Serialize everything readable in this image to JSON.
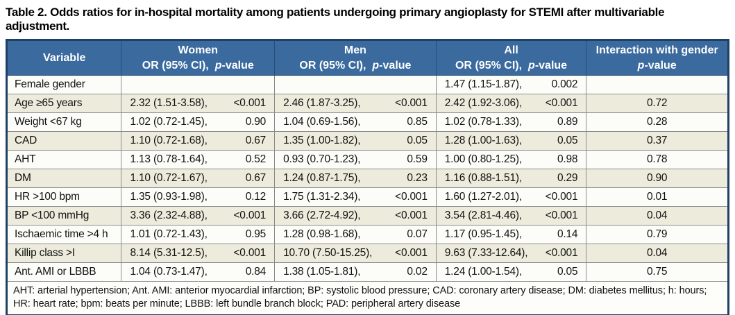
{
  "title": "Table 2. Odds ratios for in-hospital mortality among patients undergoing primary angioplasty for STEMI after multivariable adjustment.",
  "colors": {
    "header_bg": "#3a6a9e",
    "outer_border": "#1e3f66",
    "row_alt": "#edecdc",
    "row_plain": "#fcfcf8",
    "inner_border": "#8a8a8a"
  },
  "table": {
    "header": {
      "variable": "Variable",
      "women": "Women",
      "men": "Men",
      "all": "All",
      "interaction_line1": "Interaction with gender",
      "sub_or": "OR (95% CI),",
      "p_italic": "p",
      "p_rest": "-value"
    },
    "rows": [
      {
        "variable": "Female gender",
        "women": {
          "or": "",
          "p": ""
        },
        "men": {
          "or": "",
          "p": ""
        },
        "all": {
          "or": "1.47 (1.15-1.87),",
          "p": "0.002"
        },
        "interaction": ""
      },
      {
        "variable": "Age ≥65 years",
        "women": {
          "or": "2.32 (1.51-3.58),",
          "p": "<0.001"
        },
        "men": {
          "or": "2.46 (1.87-3.25),",
          "p": "<0.001"
        },
        "all": {
          "or": "2.42 (1.92-3.06),",
          "p": "<0.001"
        },
        "interaction": "0.72"
      },
      {
        "variable": "Weight <67 kg",
        "women": {
          "or": "1.02 (0.72-1.45),",
          "p": "0.90"
        },
        "men": {
          "or": "1.04 (0.69-1.56),",
          "p": "0.85"
        },
        "all": {
          "or": "1.02 (0.78-1.33),",
          "p": "0.89"
        },
        "interaction": "0.28"
      },
      {
        "variable": "CAD",
        "women": {
          "or": "1.10 (0.72-1.68),",
          "p": "0.67"
        },
        "men": {
          "or": "1.35 (1.00-1.82),",
          "p": "0.05"
        },
        "all": {
          "or": "1.28 (1.00-1.63),",
          "p": "0.05"
        },
        "interaction": "0.37"
      },
      {
        "variable": "AHT",
        "women": {
          "or": "1.13 (0.78-1.64),",
          "p": "0.52"
        },
        "men": {
          "or": "0.93 (0.70-1.23),",
          "p": "0.59"
        },
        "all": {
          "or": "1.00 (0.80-1.25),",
          "p": "0.98"
        },
        "interaction": "0.78"
      },
      {
        "variable": "DM",
        "women": {
          "or": "1.10 (0.72-1.67),",
          "p": "0.67"
        },
        "men": {
          "or": "1.24 (0.87-1.75),",
          "p": "0.23"
        },
        "all": {
          "or": "1.16 (0.88-1.51),",
          "p": "0.29"
        },
        "interaction": "0.90"
      },
      {
        "variable": "HR >100 bpm",
        "women": {
          "or": "1.35 (0.93-1.98),",
          "p": "0.12"
        },
        "men": {
          "or": "1.75 (1.31-2.34),",
          "p": "<0.001"
        },
        "all": {
          "or": "1.60 (1.27-2.01),",
          "p": "<0.001"
        },
        "interaction": "0.01"
      },
      {
        "variable": "BP <100 mmHg",
        "women": {
          "or": "3.36 (2.32-4.88),",
          "p": "<0.001"
        },
        "men": {
          "or": "3.66 (2.72-4.92),",
          "p": "<0.001"
        },
        "all": {
          "or": "3.54 (2.81-4.46),",
          "p": "<0.001"
        },
        "interaction": "0.04"
      },
      {
        "variable": "Ischaemic time >4 h",
        "women": {
          "or": "1.01 (0.72-1.43),",
          "p": "0.95"
        },
        "men": {
          "or": "1.28 (0.98-1.68),",
          "p": "0.07"
        },
        "all": {
          "or": "1.17 (0.95-1.45),",
          "p": "0.14"
        },
        "interaction": "0.79"
      },
      {
        "variable": "Killip class >I",
        "women": {
          "or": "8.14 (5.31-12.5),",
          "p": "<0.001"
        },
        "men": {
          "or": "10.70 (7.50-15.25),",
          "p": "<0.001"
        },
        "all": {
          "or": "9.63 (7.33-12.64),",
          "p": "<0.001"
        },
        "interaction": "0.04"
      },
      {
        "variable": "Ant. AMI or LBBB",
        "women": {
          "or": "1.04 (0.73-1.47),",
          "p": "0.84"
        },
        "men": {
          "or": "1.38 (1.05-1.81),",
          "p": "0.02"
        },
        "all": {
          "or": "1.24 (1.00-1.54),",
          "p": "0.05"
        },
        "interaction": "0.75"
      }
    ],
    "footnote": "AHT: arterial hypertension; Ant. AMI: anterior myocardial infarction; BP: systolic blood pressure; CAD: coronary artery disease; DM: diabetes mellitus; h: hours; HR: heart rate; bpm: beats per minute; LBBB: left bundle branch block; PAD: peripheral artery disease"
  }
}
